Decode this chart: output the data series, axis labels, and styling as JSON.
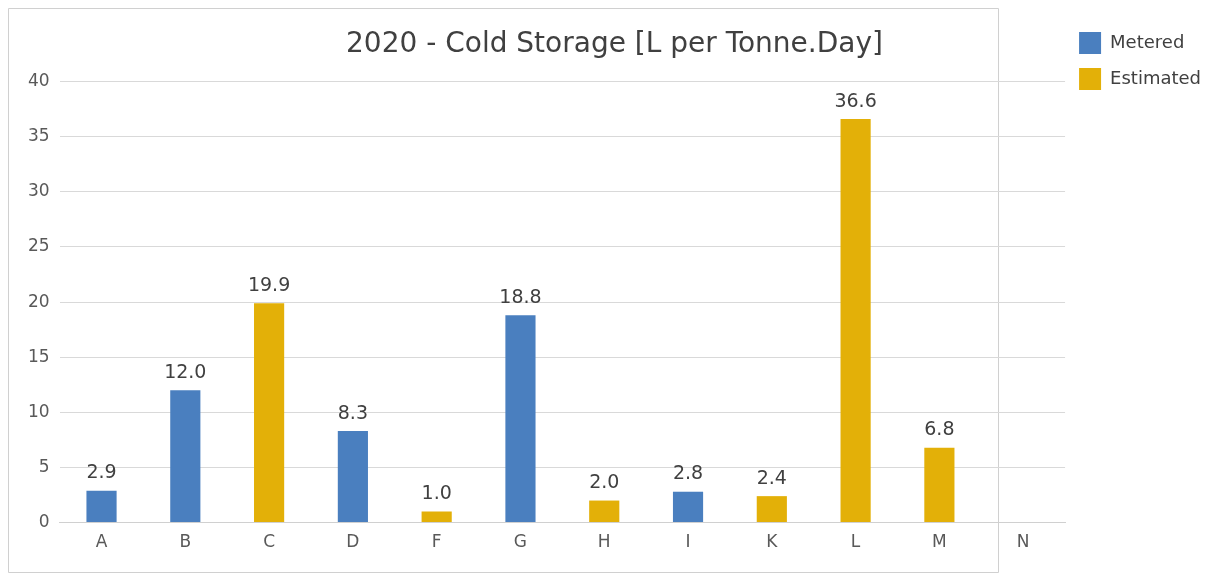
{
  "chart_data": {
    "type": "bar",
    "title": "2020 - Cold Storage [L per Tonne.Day]",
    "categories": [
      "A",
      "B",
      "C",
      "D",
      "F",
      "G",
      "H",
      "I",
      "K",
      "L",
      "M",
      "N"
    ],
    "series": [
      {
        "name": "Metered",
        "color": "#4a7fbf",
        "values": [
          2.9,
          12.0,
          null,
          8.3,
          null,
          18.8,
          null,
          2.8,
          null,
          null,
          null,
          null
        ],
        "value_labels": [
          "2.9",
          "12.0",
          null,
          "8.3",
          null,
          "18.8",
          null,
          "2.8",
          null,
          null,
          null,
          null
        ]
      },
      {
        "name": "Estimated",
        "color": "#e3b008",
        "values": [
          null,
          null,
          19.9,
          null,
          1.0,
          null,
          2.0,
          null,
          2.4,
          36.6,
          6.8,
          null
        ],
        "value_labels": [
          null,
          null,
          "19.9",
          null,
          "1.0",
          null,
          "2.0",
          null,
          "2.4",
          "36.6",
          "6.8",
          null
        ]
      }
    ],
    "ylim": [
      0,
      40
    ],
    "yticks": [
      0,
      5,
      10,
      15,
      20,
      25,
      30,
      35,
      40
    ],
    "grid": "y",
    "legend": "top right"
  }
}
